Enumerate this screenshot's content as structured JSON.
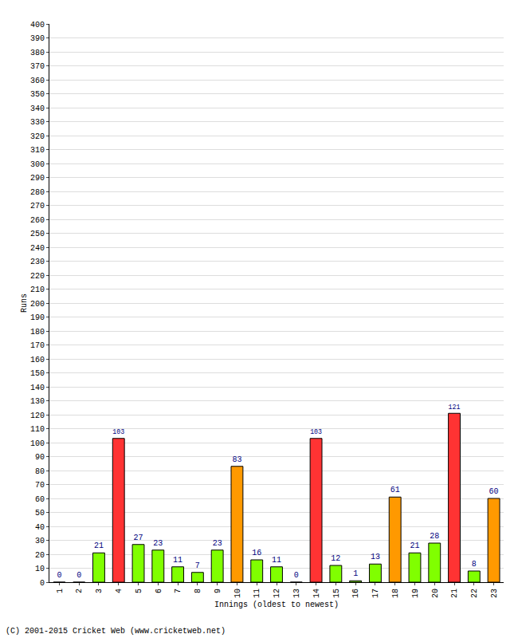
{
  "chart_data": {
    "type": "bar",
    "x_label": "Innings (oldest to newest)",
    "y_label": "Runs",
    "annotations": [
      "(C) 2001-2015 Cricket Web (www.cricketweb.net)"
    ],
    "categories": [
      "1",
      "2",
      "3",
      "4",
      "5",
      "6",
      "7",
      "8",
      "9",
      "10",
      "11",
      "12",
      "13",
      "14",
      "15",
      "16",
      "17",
      "18",
      "19",
      "20",
      "21",
      "22",
      "23"
    ],
    "values": [
      0,
      0,
      21,
      103,
      27,
      23,
      11,
      7,
      23,
      83,
      16,
      11,
      0,
      103,
      12,
      1,
      13,
      61,
      21,
      28,
      121,
      8,
      60
    ],
    "colors": [
      "#80ff00",
      "#80ff00",
      "#80ff00",
      "#ff3333",
      "#80ff00",
      "#80ff00",
      "#80ff00",
      "#80ff00",
      "#80ff00",
      "#ff9900",
      "#80ff00",
      "#80ff00",
      "#80ff00",
      "#ff3333",
      "#80ff00",
      "#80ff00",
      "#80ff00",
      "#ff9900",
      "#80ff00",
      "#80ff00",
      "#ff3333",
      "#80ff00",
      "#ff9900"
    ],
    "ylim": [
      0,
      400
    ],
    "yticks": [
      0,
      10,
      20,
      30,
      40,
      50,
      60,
      70,
      80,
      90,
      100,
      110,
      120,
      130,
      140,
      150,
      160,
      170,
      180,
      190,
      200,
      210,
      220,
      230,
      240,
      250,
      260,
      270,
      280,
      290,
      300,
      310,
      320,
      330,
      340,
      350,
      360,
      370,
      380,
      390,
      400
    ],
    "grid": true,
    "data_labels": true
  }
}
